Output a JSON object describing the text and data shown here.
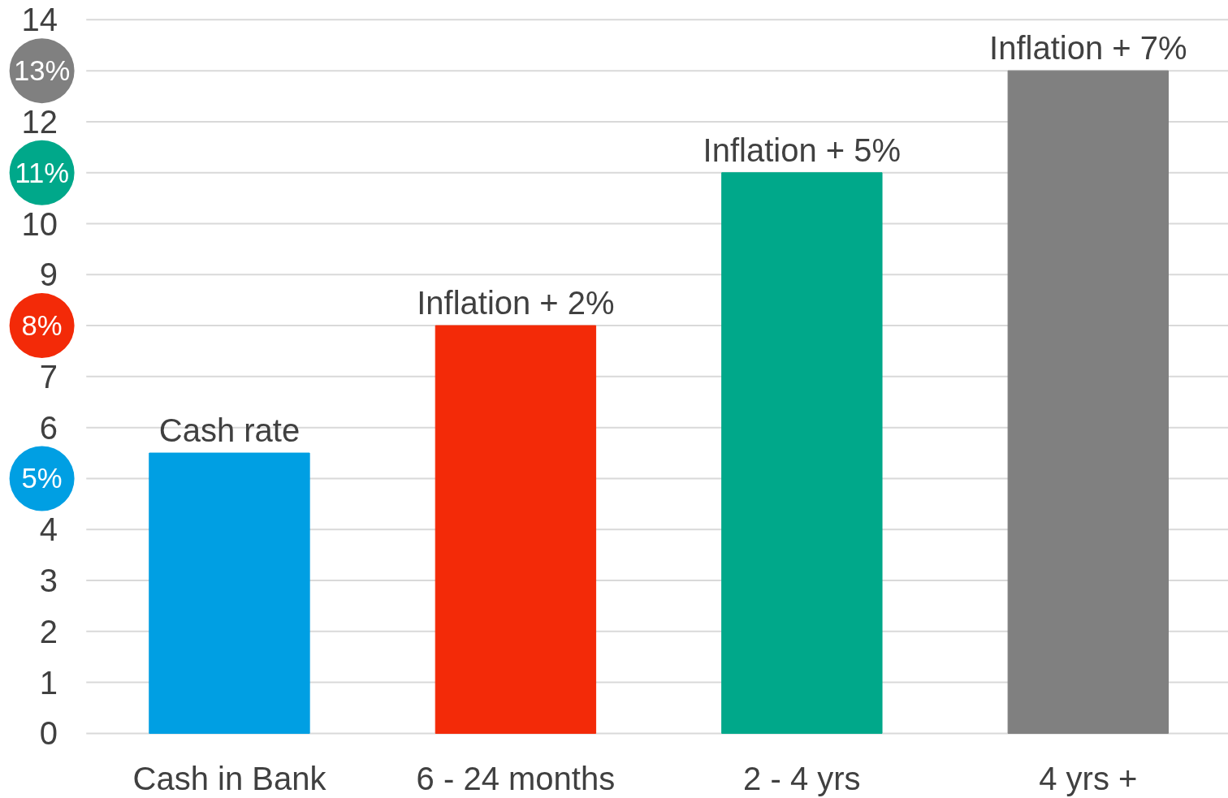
{
  "chart_data": {
    "type": "bar",
    "categories": [
      "Cash in Bank",
      "6 - 24 months",
      "2 - 4 yrs",
      "4 yrs +"
    ],
    "values": [
      5.5,
      8,
      11,
      13
    ],
    "colors": [
      "#009fe3",
      "#f32a08",
      "#00a88a",
      "#808080"
    ],
    "annotations": [
      {
        "text": "Cash rate",
        "x": "Cash in Bank",
        "y": 5.5
      },
      {
        "text": "Inflation + 2%",
        "x": "6 - 24 months",
        "y": 8
      },
      {
        "text": "Inflation + 5%",
        "x": "2 - 4 yrs",
        "y": 11
      },
      {
        "text": "Inflation + 7%",
        "x": "4 yrs +",
        "y": 13
      },
      "5%",
      "8%",
      "11%",
      "13%"
    ],
    "ylim": [
      0,
      14
    ],
    "yticks": [
      0,
      1,
      2,
      3,
      4,
      {
        "value": 5,
        "label": null
      },
      6,
      7,
      {
        "value": 8,
        "label": null
      },
      9,
      10,
      {
        "value": 11,
        "label": null
      },
      12,
      {
        "value": 13,
        "label": null
      },
      14
    ],
    "grid": "y"
  }
}
